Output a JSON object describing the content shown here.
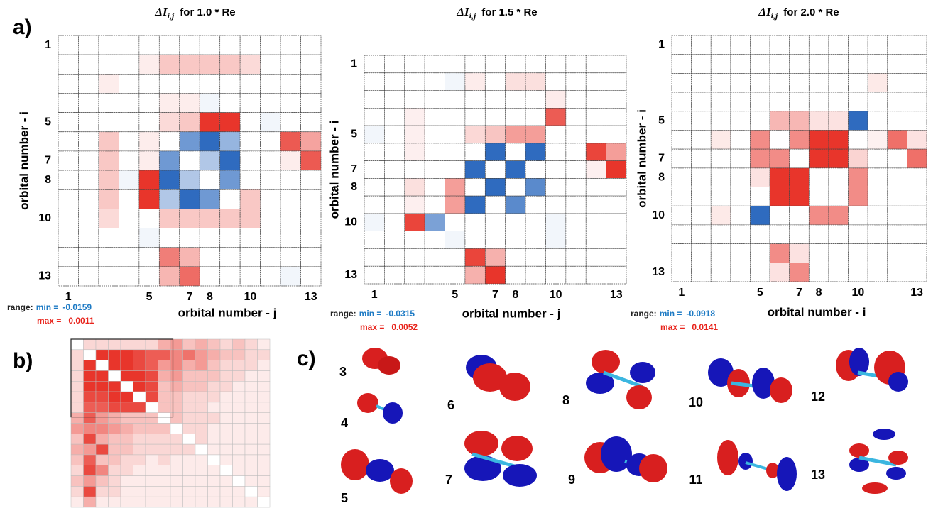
{
  "panels": {
    "a": "a)",
    "b": "b)",
    "c": "c)"
  },
  "chart_data": [
    {
      "type": "heatmap",
      "title_symbol": "ΔI",
      "title_subscript": "i,j",
      "title": "for 1.0 * Re",
      "x_label": "orbital number - j",
      "y_label": "orbital number - i",
      "xticks": [
        1,
        5,
        7,
        8,
        10,
        13
      ],
      "yticks": [
        1,
        5,
        7,
        8,
        10,
        13
      ],
      "range_label": "range:",
      "min_label": "min =",
      "min": -0.0159,
      "max_label": "max =",
      "max": 0.0011,
      "colors": {
        "negative": "#2f6bbf",
        "positive": "#e8352b"
      },
      "matrix": [
        [
          0,
          0,
          0,
          0,
          0,
          0,
          0,
          0,
          0,
          0,
          0,
          0,
          0
        ],
        [
          0,
          0,
          0,
          0,
          0.0001,
          0.0003,
          0.0003,
          0.0003,
          0.0003,
          0.0002,
          0,
          0,
          0
        ],
        [
          0,
          0,
          0.0001,
          0,
          0,
          0,
          0,
          0,
          0,
          0,
          0,
          0,
          0
        ],
        [
          0,
          0,
          0,
          0,
          0,
          0.0001,
          0.0001,
          -0.001,
          0,
          0,
          0,
          0,
          0
        ],
        [
          0,
          0,
          0,
          0,
          0,
          0.0002,
          0.0003,
          0.0011,
          0.0011,
          0,
          -0.001,
          0,
          0
        ],
        [
          0,
          0,
          0.0003,
          0,
          0.0001,
          0,
          -0.011,
          -0.0159,
          -0.008,
          0,
          0,
          0.0009,
          0.0005
        ],
        [
          0,
          0,
          0.0003,
          0,
          0.0001,
          -0.011,
          0,
          -0.006,
          -0.0159,
          0,
          0,
          0.0001,
          0.0009
        ],
        [
          0,
          0,
          0.0003,
          -0.001,
          0.0011,
          -0.0159,
          -0.006,
          0,
          -0.011,
          0,
          0,
          0,
          0
        ],
        [
          0,
          0,
          0.0003,
          0,
          0.0011,
          -0.006,
          -0.0159,
          -0.011,
          0,
          0.0003,
          0,
          0,
          0
        ],
        [
          0,
          0,
          0.0002,
          0,
          0,
          0.0003,
          0.0003,
          0.0003,
          0.0003,
          0.0003,
          0,
          0,
          0
        ],
        [
          0,
          0,
          0,
          0,
          -0.001,
          0,
          0,
          0,
          0,
          0,
          0,
          0,
          0
        ],
        [
          0,
          0,
          0,
          0,
          0,
          0.0007,
          0.0004,
          0,
          0,
          0,
          0,
          0,
          0
        ],
        [
          0,
          0,
          0,
          0,
          0,
          0.0004,
          0.0008,
          0,
          0,
          0,
          0,
          -0.001,
          0
        ]
      ]
    },
    {
      "type": "heatmap",
      "title_symbol": "ΔI",
      "title_subscript": "i,j",
      "title": "for 1.5 * Re",
      "x_label": "orbital number - j",
      "y_label": "orbital number - i",
      "xticks": [
        1,
        5,
        7,
        8,
        10,
        13
      ],
      "yticks": [
        1,
        5,
        7,
        8,
        10,
        13
      ],
      "range_label": "range:",
      "min_label": "min =",
      "min": -0.0315,
      "max_label": "max =",
      "max": 0.0052,
      "colors": {
        "negative": "#2f6bbf",
        "positive": "#e8352b"
      },
      "matrix": [
        [
          0,
          0,
          0,
          0,
          0,
          0,
          0,
          0,
          0,
          0,
          0,
          0,
          0
        ],
        [
          0,
          0,
          0,
          0,
          -0.002,
          0.0005,
          0,
          0.0008,
          0.0008,
          0,
          0,
          0,
          0
        ],
        [
          0,
          0,
          0,
          0,
          0,
          0,
          0,
          0,
          0,
          0.0005,
          0,
          0,
          0
        ],
        [
          0,
          0,
          0.0004,
          0,
          0,
          0,
          0,
          0,
          0,
          0.0042,
          0,
          0,
          0
        ],
        [
          -0.002,
          0,
          0.0004,
          0,
          0,
          0.001,
          0.0015,
          0.0025,
          0.0025,
          0,
          0,
          0,
          0
        ],
        [
          0,
          0,
          0.0004,
          0,
          0,
          0,
          -0.0315,
          0,
          -0.0315,
          0,
          0,
          0.0048,
          0.0025
        ],
        [
          0,
          0,
          0,
          0,
          0,
          -0.0315,
          0,
          -0.0315,
          0,
          0,
          0,
          0.0004,
          0.0052
        ],
        [
          0,
          0,
          0.0008,
          0,
          0.0025,
          0,
          -0.0315,
          0,
          -0.025,
          0,
          0,
          0,
          0
        ],
        [
          0,
          0,
          0.0004,
          0,
          0.0025,
          -0.0315,
          0,
          -0.025,
          0,
          0,
          0,
          0,
          0
        ],
        [
          -0.002,
          0,
          0.0048,
          -0.02,
          0,
          0,
          0,
          0,
          0,
          -0.002,
          0,
          0,
          0
        ],
        [
          0,
          0,
          0,
          0,
          -0.002,
          0,
          0,
          0,
          0,
          -0.002,
          0,
          0,
          0
        ],
        [
          0,
          0,
          0,
          0,
          0,
          0.0048,
          0.002,
          0,
          0,
          0,
          0,
          0,
          0
        ],
        [
          0,
          0,
          0,
          0,
          0,
          0.002,
          0.0052,
          0,
          0,
          0,
          0,
          0,
          0
        ]
      ]
    },
    {
      "type": "heatmap",
      "title_symbol": "ΔI",
      "title_subscript": "i,j",
      "title": "for 2.0 * Re",
      "x_label": "orbital number - i",
      "y_label": "orbital number - i",
      "xticks": [
        1,
        5,
        7,
        8,
        10,
        13
      ],
      "yticks": [
        1,
        5,
        7,
        8,
        10,
        13
      ],
      "range_label": "range:",
      "min_label": "min =",
      "min": -0.0918,
      "max_label": "max =",
      "max": 0.0141,
      "colors": {
        "negative": "#2f6bbf",
        "positive": "#e8352b"
      },
      "matrix": [
        [
          0,
          0,
          0,
          0,
          0,
          0,
          0,
          0,
          0,
          0,
          0,
          0,
          0
        ],
        [
          0,
          0,
          0,
          0,
          0,
          0,
          0,
          0,
          0,
          0,
          0,
          0,
          0
        ],
        [
          0,
          0,
          0,
          0,
          0,
          0,
          0,
          0,
          0,
          0,
          0.0015,
          0,
          0
        ],
        [
          0,
          0,
          0,
          0,
          0,
          0,
          0,
          0,
          0,
          0,
          0,
          0,
          0
        ],
        [
          0,
          0,
          0,
          0,
          0,
          0.005,
          0.005,
          0.002,
          0.002,
          -0.0918,
          0,
          0,
          0
        ],
        [
          0,
          0,
          0.0015,
          0,
          0.008,
          0,
          0.008,
          0.0141,
          0.0141,
          0,
          0.001,
          0.01,
          0.002
        ],
        [
          0,
          0,
          0,
          0,
          0.008,
          0.008,
          0,
          0.0141,
          0.0141,
          0.003,
          0,
          0,
          0.01
        ],
        [
          0,
          0,
          0,
          0,
          0.002,
          0.0141,
          0.0141,
          0,
          0,
          0.008,
          0,
          0,
          0
        ],
        [
          0,
          0,
          0,
          0,
          0,
          0.0141,
          0.0141,
          0,
          0,
          0.008,
          0,
          0,
          0
        ],
        [
          0,
          0,
          0.0015,
          0,
          -0.0918,
          0,
          0,
          0.008,
          0.008,
          0,
          0,
          0,
          0
        ],
        [
          0,
          0,
          0,
          0,
          0,
          0,
          0,
          0,
          0,
          0,
          0,
          0,
          0
        ],
        [
          0,
          0,
          0,
          0,
          0,
          0.008,
          0.002,
          0,
          0,
          0,
          0,
          0,
          0
        ],
        [
          0,
          0,
          0,
          0,
          0,
          0.002,
          0.008,
          0,
          0,
          0,
          0,
          0,
          0
        ]
      ]
    },
    {
      "type": "heatmap",
      "colors": {
        "positive": "#e8352b"
      },
      "matrix": [
        [
          0,
          0.2,
          0.2,
          0.2,
          0.2,
          0.2,
          0.2,
          0.4,
          0.5,
          0.3,
          0.4,
          0.3,
          0.2,
          0.3,
          0.2,
          0.1
        ],
        [
          0.2,
          0,
          1,
          1,
          1,
          0.9,
          0.8,
          0.8,
          0.6,
          0.7,
          0.5,
          0.4,
          0.3,
          0.3,
          0.2,
          0.2
        ],
        [
          0.2,
          1,
          0,
          1,
          1,
          0.9,
          0.8,
          0.5,
          0.6,
          0.4,
          0.5,
          0.3,
          0.2,
          0.2,
          0.2,
          0.1
        ],
        [
          0.2,
          1,
          1,
          0,
          1,
          1,
          0.9,
          0.4,
          0.5,
          0.3,
          0.3,
          0.3,
          0.2,
          0.2,
          0.1,
          0.1
        ],
        [
          0.2,
          1,
          1,
          1,
          0,
          1,
          0.9,
          0.3,
          0.4,
          0.3,
          0.3,
          0.2,
          0.2,
          0.1,
          0.1,
          0.1
        ],
        [
          0.2,
          0.9,
          0.9,
          1,
          1,
          0,
          0.9,
          0.3,
          0.3,
          0.2,
          0.2,
          0.2,
          0.1,
          0.1,
          0.1,
          0.1
        ],
        [
          0.2,
          0.8,
          0.8,
          0.9,
          0.9,
          0.9,
          0,
          0.3,
          0.3,
          0.2,
          0.2,
          0.1,
          0.1,
          0.1,
          0.1,
          0.1
        ],
        [
          0.4,
          0.8,
          0.5,
          0.4,
          0.3,
          0.3,
          0.3,
          0,
          0.3,
          0.2,
          0.2,
          0.2,
          0.1,
          0.1,
          0.1,
          0.1
        ],
        [
          0.5,
          0.6,
          0.6,
          0.5,
          0.4,
          0.3,
          0.3,
          0.3,
          0,
          0.2,
          0.2,
          0.1,
          0.1,
          0.1,
          0.1,
          0.1
        ],
        [
          0.3,
          0.9,
          0.4,
          0.3,
          0.3,
          0.2,
          0.2,
          0.2,
          0.2,
          0,
          0.2,
          0.1,
          0.1,
          0.1,
          0.1,
          0.1
        ],
        [
          0.4,
          0.5,
          0.9,
          0.3,
          0.3,
          0.2,
          0.2,
          0.2,
          0.2,
          0.2,
          0,
          0.1,
          0.1,
          0.1,
          0.1,
          0.1
        ],
        [
          0.3,
          0.8,
          0.3,
          0.3,
          0.2,
          0.2,
          0.1,
          0.2,
          0.1,
          0.1,
          0.1,
          0,
          0.1,
          0.1,
          0.1,
          0.1
        ],
        [
          0.2,
          0.9,
          0.6,
          0.2,
          0.2,
          0.1,
          0.1,
          0.1,
          0.1,
          0.1,
          0.1,
          0.1,
          0,
          0.1,
          0.1,
          0.1
        ],
        [
          0.3,
          0.5,
          0.3,
          0.2,
          0.1,
          0.1,
          0.1,
          0.1,
          0.1,
          0.1,
          0.1,
          0.1,
          0.1,
          0,
          0.1,
          0.1
        ],
        [
          0.2,
          0.9,
          0.2,
          0.2,
          0.1,
          0.1,
          0.1,
          0.1,
          0.1,
          0.1,
          0.1,
          0.1,
          0.1,
          0.1,
          0,
          0.1
        ],
        [
          0.1,
          0.4,
          0.1,
          0.1,
          0.1,
          0.1,
          0.1,
          0.1,
          0.1,
          0.1,
          0.1,
          0.1,
          0.1,
          0.1,
          0.1,
          0
        ]
      ]
    }
  ],
  "orbital_labels": [
    "3",
    "4",
    "5",
    "6",
    "7",
    "8",
    "9",
    "10",
    "11",
    "12",
    "13"
  ]
}
